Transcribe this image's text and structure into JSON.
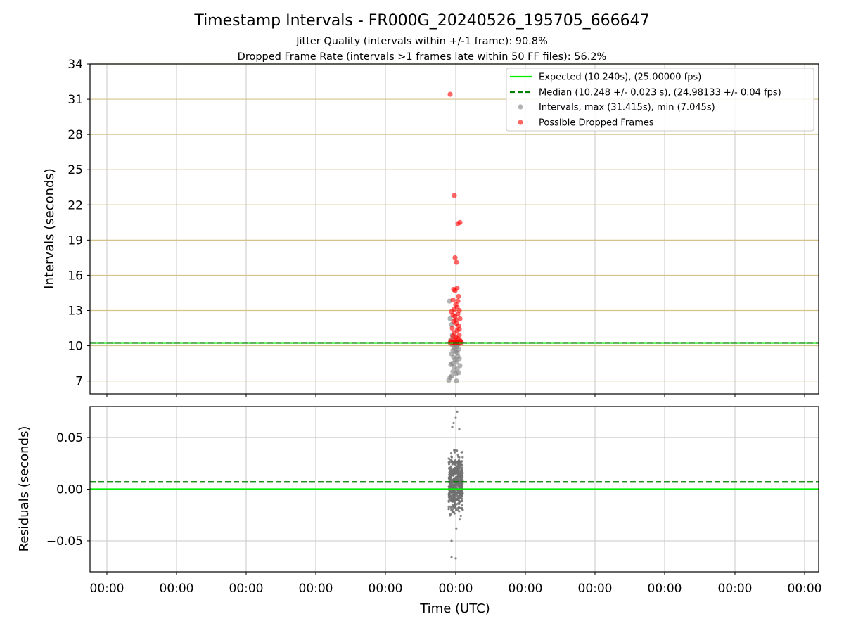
{
  "chart_data": {
    "type": "scatter",
    "title": "Timestamp Intervals - FR000G_20240526_195705_666647",
    "subtitle_lines": [
      "Jitter Quality (intervals within +/-1 frame): 90.8%",
      "Dropped Frame Rate (intervals >1 frames late within 50 FF files): 56.2%"
    ],
    "xlabel": "Time (UTC)",
    "x_tick_labels": [
      "00:00",
      "00:00",
      "00:00",
      "00:00",
      "00:00",
      "00:00",
      "00:00",
      "00:00",
      "00:00",
      "00:00",
      "00:00"
    ],
    "grid": true,
    "legend_position": "top-right",
    "colors": {
      "expected": "#00ee00",
      "median": "#008000",
      "intervals": "#808080",
      "dropped": "#ff0000",
      "ygrid_top": "#d4c48a",
      "grid": "#c8c8c8"
    },
    "top": {
      "ylabel": "Intervals (seconds)",
      "ylim": [
        5.9,
        34
      ],
      "yticks": [
        7,
        10,
        13,
        16,
        19,
        22,
        25,
        28,
        31,
        34
      ],
      "ytick_labels": [
        "7",
        "10",
        "13",
        "16",
        "19",
        "22",
        "25",
        "28",
        "31",
        "34"
      ],
      "expected": 10.24,
      "median": 10.248,
      "legend": [
        "Expected (10.240s), (25.00000 fps)",
        "Median (10.248 +/- 0.023 s), (24.98133 +/- 0.04 fps)",
        "Intervals, max (31.415s), min (7.045s)",
        "Possible Dropped Frames"
      ],
      "dropped_frames": [
        [
          -0.08,
          31.42
        ],
        [
          -0.02,
          22.8
        ],
        [
          0.03,
          20.4
        ],
        [
          0.06,
          20.5
        ],
        [
          -0.01,
          17.5
        ],
        [
          0.01,
          17.1
        ],
        [
          0.02,
          14.9
        ],
        [
          -0.03,
          14.8
        ],
        [
          -0.01,
          14.7
        ],
        [
          0.04,
          14.2
        ],
        [
          -0.04,
          13.9
        ],
        [
          0.0,
          13.5
        ],
        [
          0.02,
          13.3
        ],
        [
          -0.02,
          13.1
        ],
        [
          0.05,
          13.0
        ],
        [
          -0.06,
          12.9
        ],
        [
          0.03,
          12.7
        ],
        [
          -0.01,
          12.5
        ],
        [
          0.06,
          12.3
        ],
        [
          -0.03,
          12.1
        ],
        [
          0.01,
          11.9
        ],
        [
          0.04,
          11.7
        ],
        [
          -0.05,
          11.5
        ],
        [
          0.02,
          11.3
        ],
        [
          -0.02,
          11.1
        ],
        [
          0.05,
          10.9
        ],
        [
          -0.04,
          10.8
        ],
        [
          0.0,
          10.7
        ],
        [
          0.03,
          10.6
        ],
        [
          -0.01,
          10.5
        ],
        [
          0.06,
          10.45
        ],
        [
          -0.07,
          10.4
        ],
        [
          0.07,
          10.35
        ],
        [
          -0.03,
          10.3
        ],
        [
          0.01,
          10.3
        ],
        [
          0.04,
          10.28
        ],
        [
          -0.05,
          10.28
        ],
        [
          0.02,
          10.27
        ],
        [
          -0.02,
          10.27
        ],
        [
          0.08,
          10.26
        ],
        [
          -0.08,
          10.26
        ],
        [
          0.0,
          12.2
        ],
        [
          0.05,
          11.4
        ],
        [
          -0.04,
          12.6
        ],
        [
          0.03,
          13.8
        ]
      ],
      "intervals": [
        [
          -0.09,
          13.8
        ],
        [
          -0.08,
          12.3
        ],
        [
          -0.06,
          11.8
        ],
        [
          -0.05,
          10.9
        ],
        [
          -0.07,
          10.5
        ],
        [
          0.02,
          10.22
        ],
        [
          -0.03,
          10.2
        ],
        [
          0.05,
          10.19
        ],
        [
          -0.01,
          10.15
        ],
        [
          0.03,
          10.1
        ],
        [
          -0.05,
          10.05
        ],
        [
          0.01,
          9.9
        ],
        [
          -0.02,
          9.8
        ],
        [
          0.04,
          9.7
        ],
        [
          -0.04,
          9.6
        ],
        [
          0.0,
          9.5
        ],
        [
          0.02,
          9.4
        ],
        [
          -0.06,
          9.3
        ],
        [
          0.03,
          9.1
        ],
        [
          -0.03,
          9.0
        ],
        [
          0.05,
          8.9
        ],
        [
          -0.01,
          8.8
        ],
        [
          0.01,
          8.6
        ],
        [
          -0.05,
          8.5
        ],
        [
          0.06,
          8.3
        ],
        [
          -0.02,
          8.2
        ],
        [
          0.02,
          8.0
        ],
        [
          -0.04,
          7.8
        ],
        [
          0.0,
          7.6
        ],
        [
          -0.06,
          7.4
        ],
        [
          -0.1,
          7.05
        ],
        [
          0.01,
          7.0
        ],
        [
          -0.08,
          7.3
        ],
        [
          0.04,
          7.7
        ],
        [
          -0.07,
          8.4
        ]
      ]
    },
    "bottom": {
      "ylabel": "Residuals (seconds)",
      "ylim": [
        -0.08,
        0.08
      ],
      "yticks": [
        -0.05,
        0.0,
        0.05
      ],
      "ytick_labels": [
        "−0.05",
        "0.00",
        "0.05"
      ],
      "expected": 0.0,
      "median": 0.007
    }
  }
}
